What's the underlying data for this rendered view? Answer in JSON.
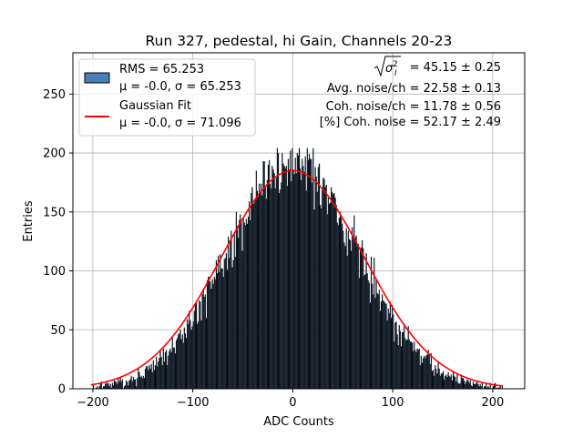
{
  "chart_data": {
    "type": "bar",
    "title": "Run 327, pedestal, hi Gain, Channels 20-23",
    "xlabel": "ADC Counts",
    "ylabel": "Entries",
    "xlim": [
      -220,
      232
    ],
    "ylim": [
      0,
      285
    ],
    "xticks": [
      "−200",
      "−100",
      "0",
      "100",
      "200"
    ],
    "xtick_values": [
      -200,
      -100,
      0,
      100,
      200
    ],
    "yticks": [
      "0",
      "50",
      "100",
      "150",
      "200",
      "250"
    ],
    "ytick_values": [
      0,
      50,
      100,
      150,
      200,
      250
    ],
    "grid": true,
    "histogram": {
      "bin_start": -200,
      "bin_end": 210,
      "bin_width": 1,
      "mean": 0.0,
      "sigma": 65.253,
      "peak_count": 193,
      "max_bin_value": 204,
      "fill_color": "#000000",
      "edge_color": "#4a7fb5"
    },
    "fit": {
      "mean": 0.0,
      "sigma": 71.096,
      "amplitude": 185,
      "x_range": [
        -202,
        210
      ],
      "color": "#ff0000"
    },
    "legend": {
      "position": "upper-left",
      "entries": [
        {
          "label_line1": "RMS = 65.253",
          "label_line2": "μ = -0.0, σ = 65.253",
          "swatch": "patch",
          "color": "#4a7fb5"
        },
        {
          "label_line1": "Gaussian Fit",
          "label_line2": "μ = -0.0, σ = 71.096",
          "swatch": "line",
          "color": "#ff0000"
        }
      ]
    },
    "annotations": {
      "sigma_value": "= 45.15 ± 0.25",
      "avg_noise": "Avg. noise/ch = 22.58 ± 0.13",
      "coh_noise": "Coh. noise/ch = 11.78 ± 0.56",
      "pct_coh_noise": "[%] Coh. noise = 52.17 ± 2.49"
    }
  }
}
